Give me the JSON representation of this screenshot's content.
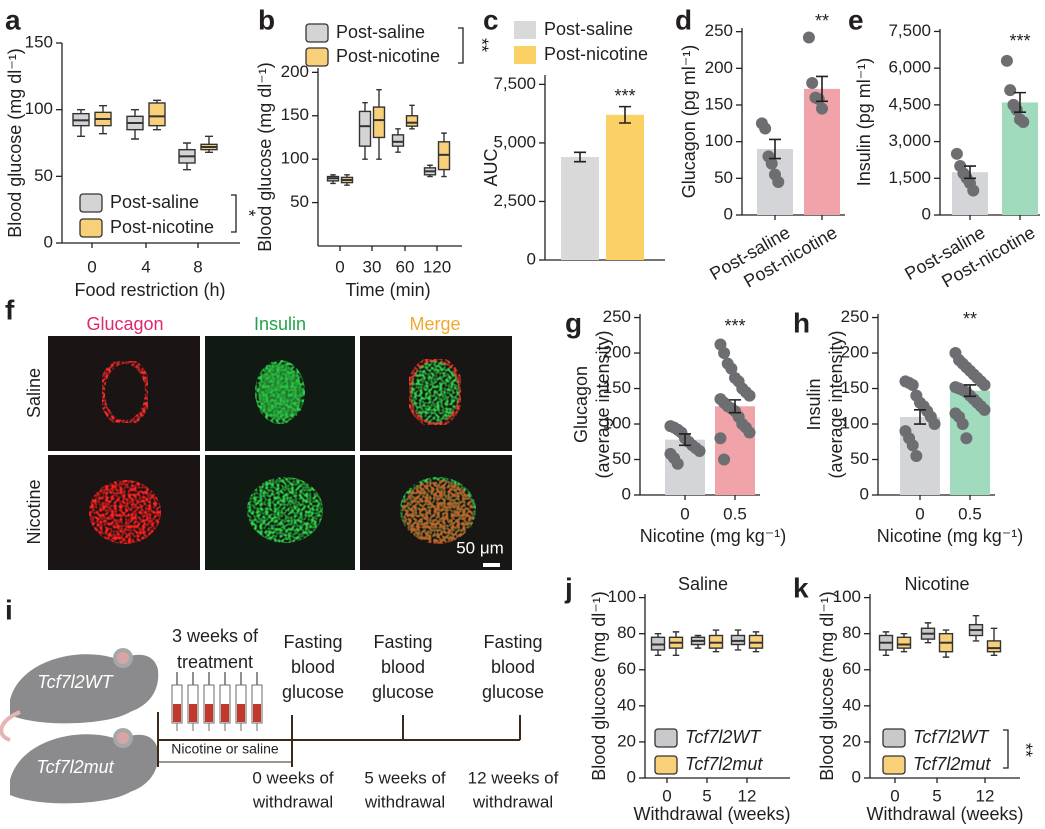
{
  "panel_f": {
    "label": "f",
    "columns": [
      "Glucagon",
      "Insulin",
      "Merge"
    ],
    "rows": [
      "Saline",
      "Nicotine"
    ],
    "scale_bar": "50 μm"
  },
  "panel_i": {
    "label": "i",
    "mice": [
      "Tcf7l2WT",
      "Tcf7l2mut"
    ],
    "treatment": [
      "3 weeks of",
      "treatment"
    ],
    "treatment_note": "Nicotine or saline",
    "timepoints": [
      {
        "measure": [
          "Fasting",
          "blood",
          "glucose"
        ],
        "withdrawal": [
          "0 weeks of",
          "withdrawal"
        ]
      },
      {
        "measure": [
          "Fasting",
          "blood",
          "glucose"
        ],
        "withdrawal": [
          "5 weeks of",
          "withdrawal"
        ]
      },
      {
        "measure": [
          "Fasting",
          "blood",
          "glucose"
        ],
        "withdrawal": [
          "12 weeks of",
          "withdrawal"
        ]
      }
    ]
  },
  "chart_data": [
    {
      "type": "box",
      "label": "a",
      "ylabel": [
        "Blood glucose (mg dl⁻¹)"
      ],
      "xlabel": "Food restriction (h)",
      "categories": [
        "0",
        "4",
        "8"
      ],
      "ylim": [
        0,
        150
      ],
      "yticks": [
        0,
        50,
        100,
        150
      ],
      "annotation": "*",
      "series": [
        {
          "name": "Post-saline",
          "color": "#d4d4d4",
          "values": [
            [
              80,
              88,
              92,
              97,
              100
            ],
            [
              78,
              85,
              90,
              95,
              100
            ],
            [
              55,
              60,
              65,
              70,
              75
            ]
          ]
        },
        {
          "name": "Post-nicotine",
          "color": "#f8d07a",
          "values": [
            [
              82,
              88,
              93,
              98,
              103
            ],
            [
              85,
              88,
              95,
              105,
              107
            ],
            [
              68,
              70,
              72,
              74,
              80
            ]
          ]
        }
      ]
    },
    {
      "type": "box",
      "label": "b",
      "ylabel": [
        "Blood glucose (mg dl⁻¹)"
      ],
      "xlabel": "Time (min)",
      "categories": [
        "0",
        "30",
        "60",
        "120"
      ],
      "ylim": [
        0,
        205
      ],
      "yticks": [
        50,
        100,
        150,
        200
      ],
      "annotation": "**",
      "series": [
        {
          "name": "Post-saline",
          "color": "#d4d4d4",
          "values": [
            [
              72,
              75,
              78,
              80,
              82
            ],
            [
              100,
              115,
              138,
              155,
              165
            ],
            [
              108,
              115,
              120,
              128,
              135
            ],
            [
              80,
              82,
              86,
              90,
              93
            ]
          ]
        },
        {
          "name": "Post-nicotine",
          "color": "#f8d07a",
          "values": [
            [
              70,
              73,
              76,
              79,
              82
            ],
            [
              100,
              125,
              145,
              160,
              180
            ],
            [
              135,
              138,
              142,
              150,
              162
            ],
            [
              80,
              88,
              105,
              120,
              130
            ]
          ]
        }
      ]
    },
    {
      "type": "bar",
      "label": "c",
      "ylabel": [
        "AUC"
      ],
      "ylim": [
        0,
        7900
      ],
      "annotation": "***",
      "yticks": [
        0,
        {
          "value": 2500,
          "label": "2,500"
        },
        {
          "value": 5000,
          "label": "5,000"
        },
        {
          "value": 7500,
          "label": "7,500"
        }
      ],
      "series": [
        {
          "name": "Post-saline",
          "color": "#d9d9d9",
          "values": [
            4400
          ],
          "errors": [
            200
          ]
        },
        {
          "name": "Post-nicotine",
          "color": "#fbd166",
          "values": [
            6200
          ],
          "errors": [
            350
          ]
        }
      ]
    },
    {
      "type": "bar",
      "label": "d",
      "ylabel": [
        "Glucagon (pg ml⁻¹)"
      ],
      "categories": [
        "Post-saline",
        "Post-nicotine"
      ],
      "colors": [
        "#d3d5d8",
        "#f0a3a9"
      ],
      "ylim": [
        0,
        255
      ],
      "yticks": [
        0,
        50,
        100,
        150,
        200,
        250
      ],
      "annotation": "**",
      "values": [
        90,
        172
      ],
      "errors": [
        13,
        17
      ],
      "points": [
        [
          125,
          118,
          80,
          70,
          55,
          45
        ],
        [
          242,
          180,
          160,
          158,
          145
        ]
      ]
    },
    {
      "type": "bar",
      "label": "e",
      "ylabel": [
        "Insulin (pg ml⁻¹)"
      ],
      "categories": [
        "Post-saline",
        "Post-nicotine"
      ],
      "colors": [
        "#d3d5d8",
        "#a0dbbe"
      ],
      "ylim": [
        0,
        7600
      ],
      "annotation": "***",
      "yticks": [
        0,
        {
          "value": 1500,
          "label": "1,500"
        },
        {
          "value": 3000,
          "label": "3,000"
        },
        {
          "value": 4500,
          "label": "4,500"
        },
        {
          "value": 6000,
          "label": "6,000"
        },
        {
          "value": 7500,
          "label": "7,500"
        }
      ],
      "values": [
        1750,
        4600
      ],
      "errors": [
        250,
        400
      ],
      "points": [
        [
          2500,
          2000,
          1700,
          1500,
          1300,
          1000
        ],
        [
          6300,
          5100,
          4500,
          4300,
          3900,
          3800
        ]
      ]
    },
    {
      "type": "bar",
      "label": "g",
      "ylabel": [
        "Glucagon",
        "(average intensity)"
      ],
      "xlabel": "Nicotine (mg kg⁻¹)",
      "categories": [
        "0",
        "0.5"
      ],
      "colors": [
        "#d3d5d8",
        "#f0a3a9"
      ],
      "ylim": [
        0,
        255
      ],
      "yticks": [
        0,
        50,
        100,
        150,
        200,
        250
      ],
      "annotation": "***",
      "values": [
        78,
        125
      ],
      "errors": [
        8,
        9
      ],
      "points": [
        [
          97,
          95,
          92,
          88,
          80,
          75,
          70,
          66,
          62,
          58,
          52,
          44
        ],
        [
          212,
          200,
          185,
          178,
          165,
          160,
          150,
          145,
          140,
          135,
          130,
          125,
          122,
          118,
          110,
          100,
          95,
          88,
          80,
          50
        ]
      ]
    },
    {
      "type": "bar",
      "label": "h",
      "ylabel": [
        "Insulin",
        "(average intensity)"
      ],
      "xlabel": "Nicotine (mg kg⁻¹)",
      "categories": [
        "0",
        "0.5"
      ],
      "colors": [
        "#d3d5d8",
        "#a0dbbe"
      ],
      "ylim": [
        0,
        255
      ],
      "yticks": [
        0,
        50,
        100,
        150,
        200,
        250
      ],
      "annotation": "**",
      "values": [
        110,
        147
      ],
      "errors": [
        10,
        8
      ],
      "points": [
        [
          160,
          158,
          155,
          140,
          130,
          125,
          118,
          110,
          100,
          90,
          80,
          70,
          55
        ],
        [
          200,
          190,
          185,
          180,
          175,
          170,
          165,
          160,
          155,
          152,
          150,
          148,
          145,
          140,
          135,
          130,
          125,
          120,
          115,
          110,
          100,
          80
        ]
      ]
    },
    {
      "type": "box",
      "label": "j",
      "title": "Saline",
      "ylabel": [
        "Blood glucose (mg dl⁻¹)"
      ],
      "xlabel": "Withdrawal (weeks)",
      "categories": [
        "0",
        "5",
        "12"
      ],
      "ylim": [
        0,
        102
      ],
      "yticks": [
        0,
        20,
        40,
        60,
        80,
        100
      ],
      "series": [
        {
          "name": "Tcf7l2WT",
          "color": "#c8c9cb",
          "values": [
            [
              68,
              71,
              74,
              78,
              80
            ],
            [
              72,
              74,
              76,
              78,
              79
            ],
            [
              71,
              74,
              76,
              79,
              82
            ]
          ]
        },
        {
          "name": "Tcf7l2mut",
          "color": "#f8d07a",
          "values": [
            [
              68,
              72,
              75,
              78,
              81
            ],
            [
              70,
              72,
              75,
              79,
              82
            ],
            [
              70,
              72,
              75,
              79,
              81
            ]
          ]
        }
      ]
    },
    {
      "type": "box",
      "label": "k",
      "title": "Nicotine",
      "ylabel": [
        "Blood glucose (mg dl⁻¹)"
      ],
      "xlabel": "Withdrawal (weeks)",
      "categories": [
        "0",
        "5",
        "12"
      ],
      "ylim": [
        0,
        102
      ],
      "yticks": [
        0,
        20,
        40,
        60,
        80,
        100
      ],
      "annotation": "**",
      "series": [
        {
          "name": "Tcf7l2WT",
          "color": "#c8c9cb",
          "values": [
            [
              68,
              71,
              75,
              79,
              81
            ],
            [
              75,
              77,
              80,
              83,
              86
            ],
            [
              76,
              79,
              82,
              85,
              90
            ]
          ]
        },
        {
          "name": "Tcf7l2mut",
          "color": "#f8d07a",
          "values": [
            [
              70,
              72,
              74,
              78,
              80
            ],
            [
              67,
              70,
              75,
              80,
              82
            ],
            [
              68,
              70,
              72,
              76,
              83
            ]
          ]
        }
      ]
    }
  ]
}
